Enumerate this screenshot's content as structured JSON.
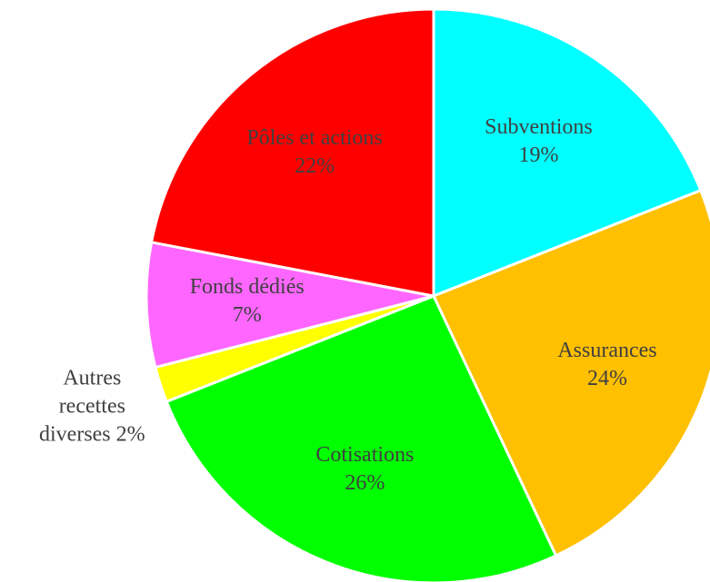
{
  "chart_data": {
    "type": "pie",
    "categories": [
      "Subventions",
      "Assurances",
      "Cotisations",
      "Autres recettes diverses",
      "Fonds dédiés",
      "Pôles et actions"
    ],
    "values": [
      19,
      24,
      26,
      2,
      7,
      22
    ],
    "value_labels": [
      "19%",
      "24%",
      "26%",
      "2%",
      "7%",
      "22%"
    ],
    "colors": [
      "#00ffff",
      "#ffc000",
      "#00ff00",
      "#ffff00",
      "#ff66ff",
      "#ff0000"
    ]
  }
}
